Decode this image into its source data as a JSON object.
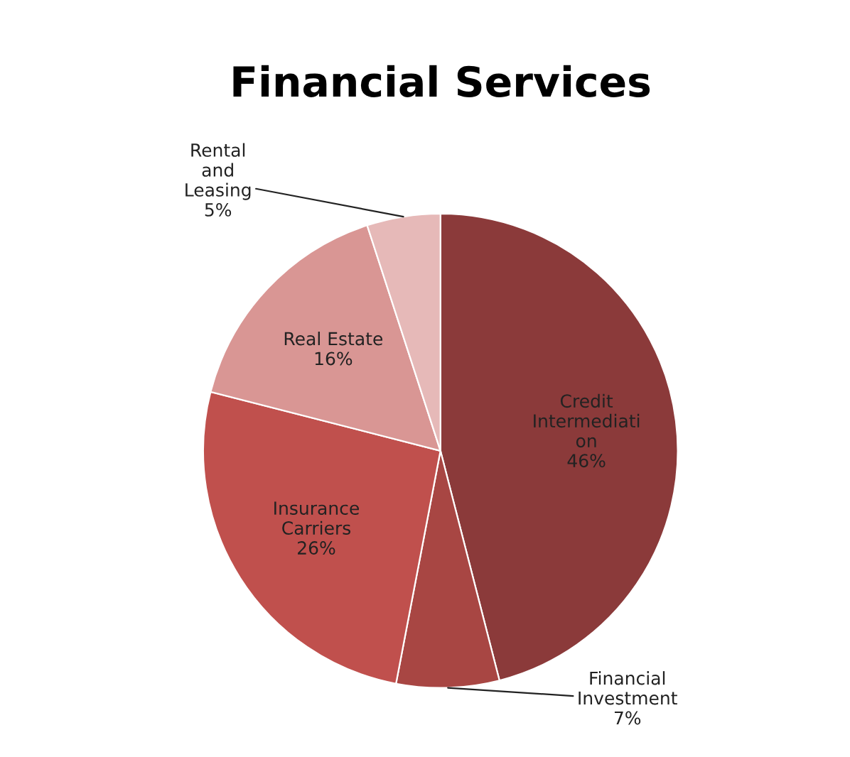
{
  "chart_data": {
    "type": "pie",
    "title": "Financial Services",
    "categories": [
      "Credit\nIntermediati\non",
      "Financial\nInvestment",
      "Insurance\nCarriers",
      "Real Estate",
      "Rental\nand\nLeasing"
    ],
    "values": [
      46,
      7,
      26,
      16,
      5
    ],
    "colors": [
      "#8b3a3a",
      "#a84643",
      "#c0504d",
      "#d99694",
      "#e6b9b8"
    ],
    "value_labels": [
      "46%",
      "7%",
      "26%",
      "16%",
      "5%"
    ]
  }
}
